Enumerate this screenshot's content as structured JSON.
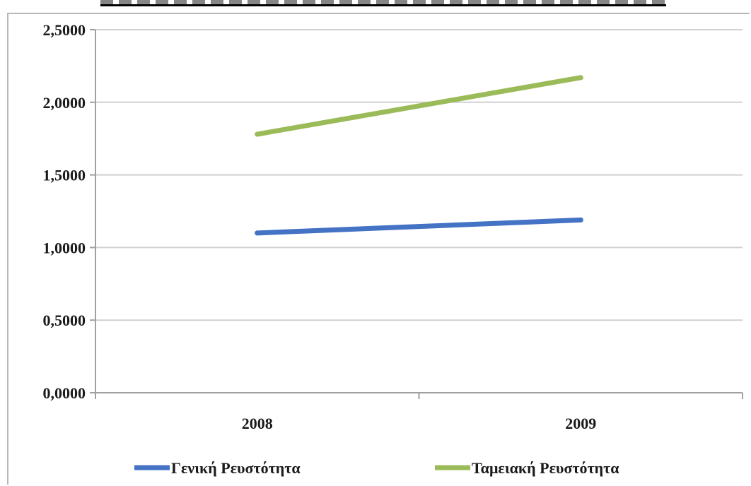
{
  "chart_data": {
    "type": "line",
    "categories": [
      "2008",
      "2009"
    ],
    "series": [
      {
        "name": "Γενική Ρευστότητα",
        "values": [
          1.1,
          1.19
        ],
        "color": "#4472c4"
      },
      {
        "name": "Ταμειακή Ρευστότητα",
        "values": [
          1.78,
          2.17
        ],
        "color": "#9bbb59"
      }
    ],
    "y_ticks": [
      "0,0000",
      "0,5000",
      "1,0000",
      "1,5000",
      "2,0000",
      "2,5000"
    ],
    "ylim": [
      0,
      2.5
    ],
    "grid": true,
    "legend_position": "bottom"
  }
}
